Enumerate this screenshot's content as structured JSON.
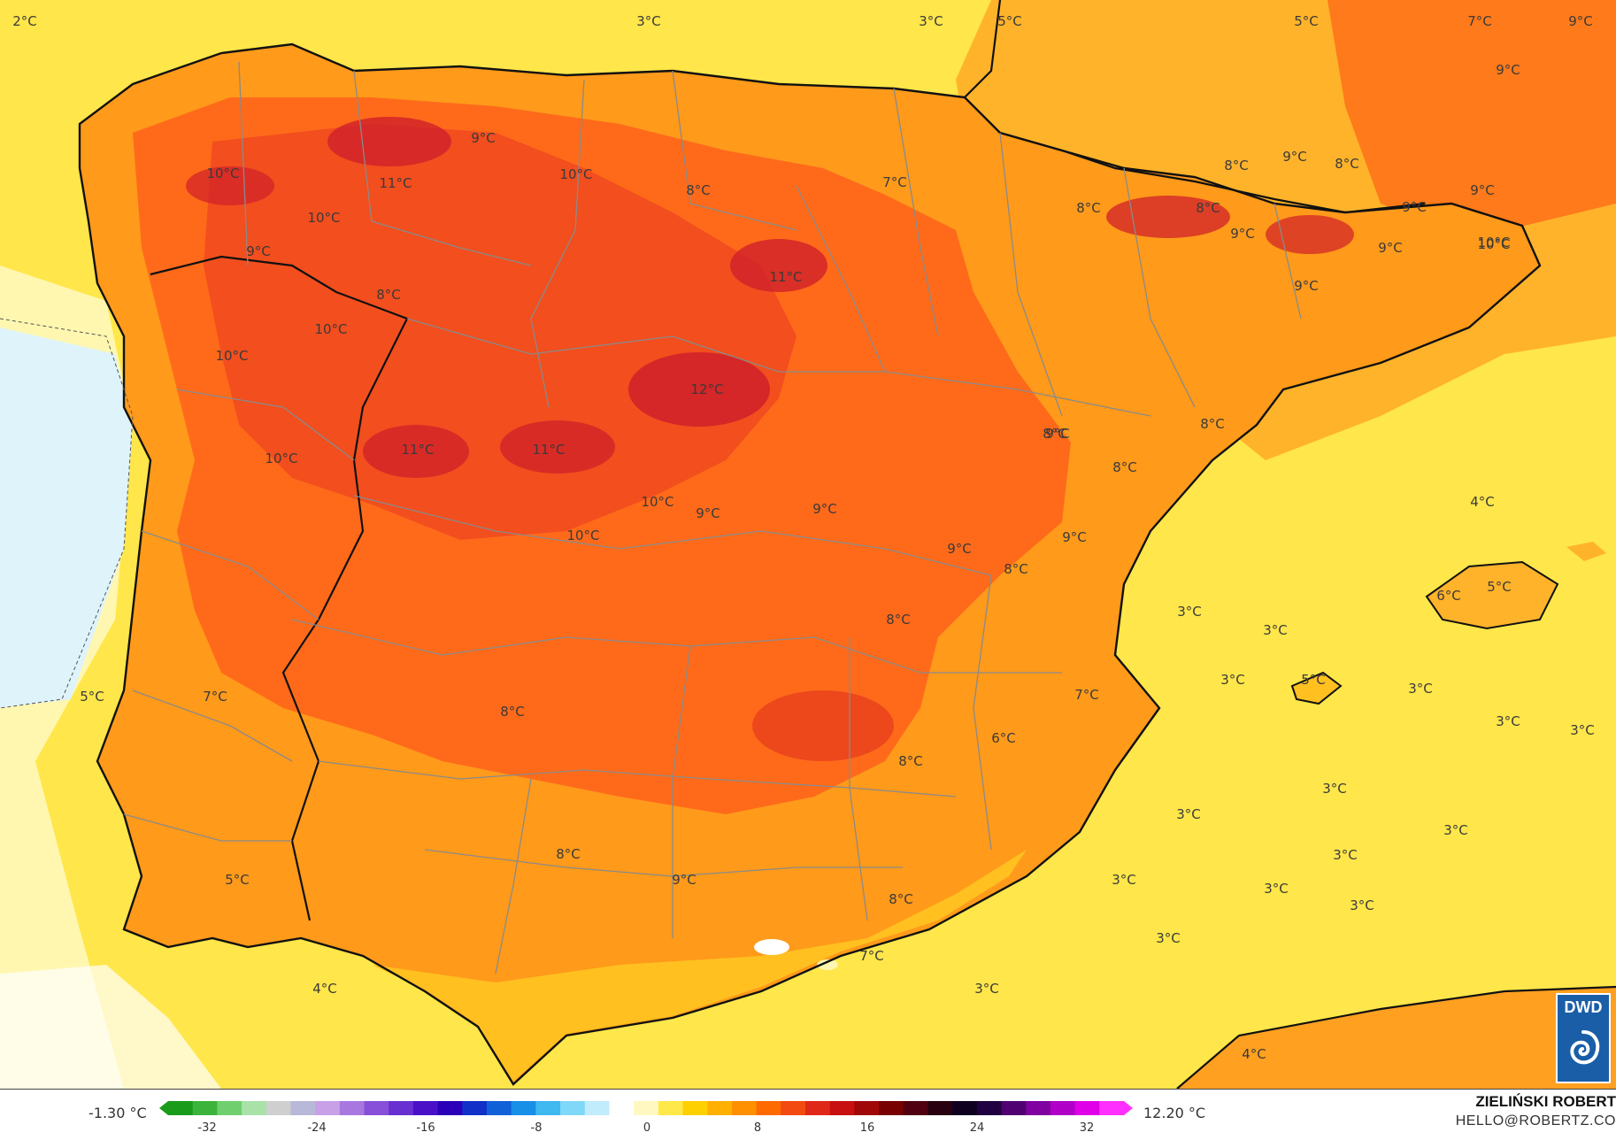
{
  "map": {
    "labels": [
      {
        "text": "2°C"
      },
      {
        "text": "3°C"
      },
      {
        "text": "3°C"
      },
      {
        "text": "5°C"
      },
      {
        "text": "5°C"
      },
      {
        "text": "7°C"
      },
      {
        "text": "9°C"
      },
      {
        "text": "9°C"
      },
      {
        "text": "10°C"
      },
      {
        "text": "11°C"
      },
      {
        "text": "10°C"
      },
      {
        "text": "8°C"
      },
      {
        "text": "7°C"
      },
      {
        "text": "10°C"
      },
      {
        "text": "9°C"
      },
      {
        "text": "11°C"
      },
      {
        "text": "8°C"
      },
      {
        "text": "10°C"
      },
      {
        "text": "10°C"
      },
      {
        "text": "12°C"
      },
      {
        "text": "11°C"
      },
      {
        "text": "11°C"
      },
      {
        "text": "10°C"
      },
      {
        "text": "10°C"
      },
      {
        "text": "10°C"
      },
      {
        "text": "9°C"
      },
      {
        "text": "9°C"
      },
      {
        "text": "8°C"
      },
      {
        "text": "8°C"
      },
      {
        "text": "9°C"
      },
      {
        "text": "9°C"
      },
      {
        "text": "8°C"
      },
      {
        "text": "8°C"
      },
      {
        "text": "9°C"
      },
      {
        "text": "9°C"
      },
      {
        "text": "9°C"
      },
      {
        "text": "10°C"
      },
      {
        "text": "8°C"
      },
      {
        "text": "9°C"
      },
      {
        "text": "5°C"
      },
      {
        "text": "7°C"
      },
      {
        "text": "8°C"
      },
      {
        "text": "8°C"
      },
      {
        "text": "10°C"
      },
      {
        "text": "9°C"
      },
      {
        "text": "9°C"
      },
      {
        "text": "8°C"
      },
      {
        "text": "7°C"
      },
      {
        "text": "6°C"
      },
      {
        "text": "9°C"
      },
      {
        "text": "8°C"
      },
      {
        "text": "8°C"
      },
      {
        "text": "9°C"
      },
      {
        "text": "5°C"
      },
      {
        "text": "8°C"
      },
      {
        "text": "8°C"
      },
      {
        "text": "9°C"
      },
      {
        "text": "8°C"
      },
      {
        "text": "7°C"
      },
      {
        "text": "4°C"
      },
      {
        "text": "3°C"
      },
      {
        "text": "4°C"
      },
      {
        "text": "6°C"
      },
      {
        "text": "5°C"
      },
      {
        "text": "3°C"
      },
      {
        "text": "3°C"
      },
      {
        "text": "3°C"
      },
      {
        "text": "5°C"
      },
      {
        "text": "3°C"
      },
      {
        "text": "3°C"
      },
      {
        "text": "3°C"
      },
      {
        "text": "3°C"
      },
      {
        "text": "3°C"
      },
      {
        "text": "3°C"
      },
      {
        "text": "3°C"
      },
      {
        "text": "3°C"
      },
      {
        "text": "3°C"
      },
      {
        "text": "3°C"
      },
      {
        "text": "3°C"
      },
      {
        "text": "4°C"
      }
    ]
  },
  "legend": {
    "min_label": "-1.30 °C",
    "max_label": "12.20 °C",
    "ticks": [
      "-32",
      "-24",
      "-16",
      "-8",
      "0",
      "8",
      "16",
      "24",
      "32"
    ],
    "colors": [
      "#1a9c1a",
      "#3cb43c",
      "#6fcf6f",
      "#a8e2a8",
      "#cfcfcf",
      "#b8b8d8",
      "#c8a0e8",
      "#a878e0",
      "#8850d8",
      "#6830d0",
      "#4a10c8",
      "#2a00b8",
      "#1030c8",
      "#1060d8",
      "#1890e8",
      "#40b8f0",
      "#80d8f8",
      "#c0ecfc",
      "#ffffff",
      "#fff8c0",
      "#ffe84a",
      "#ffd000",
      "#ffb000",
      "#ff9000",
      "#ff6a00",
      "#f24a10",
      "#e02818",
      "#c81010",
      "#a00808",
      "#780000",
      "#500010",
      "#280010",
      "#100020",
      "#200040",
      "#500070",
      "#8000a0",
      "#b000c8",
      "#e000e8",
      "#ff30ff"
    ]
  },
  "credit": {
    "name": "ZIELIŃSKI ROBERT",
    "email": "HELLO@ROBERTZ.CO"
  },
  "logo": {
    "text": "DWD"
  }
}
